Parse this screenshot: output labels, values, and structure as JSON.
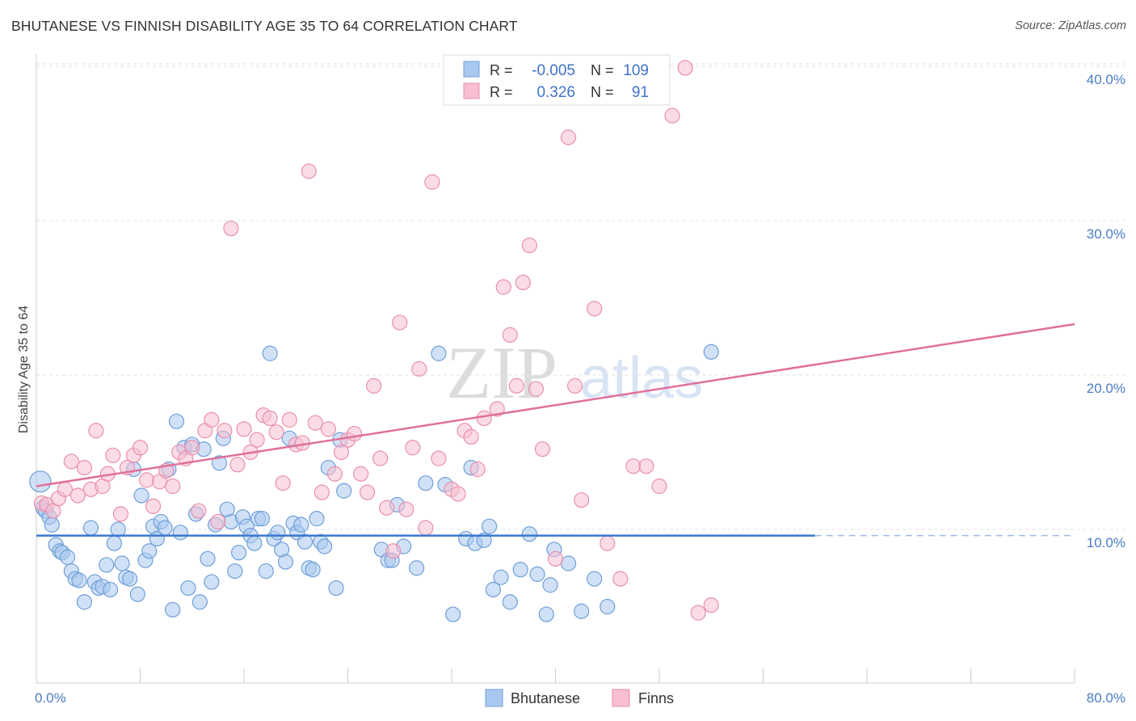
{
  "title": "BHUTANESE VS FINNISH DISABILITY AGE 35 TO 64 CORRELATION CHART",
  "source": "Source: ZipAtlas.com",
  "watermark": {
    "zip": "ZIP",
    "atlas": "atlas"
  },
  "chart_data": {
    "type": "scatter",
    "ylabel": "Disability Age 35 to 64",
    "xlim": [
      0,
      80
    ],
    "ylim": [
      0,
      42
    ],
    "x_tick_labels": [
      "0.0%",
      "80.0%"
    ],
    "y_ticks": [
      10,
      20,
      30,
      40
    ],
    "y_tick_labels": [
      "10.0%",
      "20.0%",
      "30.0%",
      "40.0%"
    ],
    "legend_top": {
      "rows": [
        {
          "r_label": "R =",
          "r_value": "-0.005",
          "n_label": "N =",
          "n_value": "109"
        },
        {
          "r_label": "R =",
          "r_value": "0.326",
          "n_label": "N =",
          "n_value": "91"
        }
      ]
    },
    "colors": {
      "blue_fill": "#a9c8f0",
      "blue_stroke": "#6f9fd8",
      "blue_line": "#3a78d0",
      "pink_fill": "#f7bfd0",
      "pink_stroke": "#e98fae",
      "pink_line": "#e0709a"
    },
    "series": [
      {
        "name": "Bhutanese",
        "trend": {
          "x": [
            0,
            60
          ],
          "y": [
            9.6,
            9.6
          ],
          "dashed_to": 80
        },
        "points": [
          [
            0.3,
            13.1
          ],
          [
            0.5,
            11.4
          ],
          [
            0.7,
            11.2
          ],
          [
            1.0,
            10.8
          ],
          [
            1.2,
            10.3
          ],
          [
            1.5,
            9.0
          ],
          [
            1.8,
            8.6
          ],
          [
            2.0,
            8.5
          ],
          [
            2.4,
            8.2
          ],
          [
            2.7,
            7.3
          ],
          [
            3.0,
            6.8
          ],
          [
            3.3,
            6.7
          ],
          [
            3.7,
            5.3
          ],
          [
            4.2,
            10.1
          ],
          [
            4.5,
            6.6
          ],
          [
            4.8,
            6.2
          ],
          [
            5.1,
            6.3
          ],
          [
            5.4,
            7.7
          ],
          [
            5.7,
            6.1
          ],
          [
            6.0,
            9.1
          ],
          [
            6.3,
            10.0
          ],
          [
            6.6,
            7.8
          ],
          [
            6.9,
            6.9
          ],
          [
            7.2,
            6.8
          ],
          [
            7.5,
            13.9
          ],
          [
            7.8,
            5.8
          ],
          [
            8.1,
            12.2
          ],
          [
            8.4,
            8.0
          ],
          [
            8.7,
            8.6
          ],
          [
            9.0,
            10.2
          ],
          [
            9.3,
            9.4
          ],
          [
            9.6,
            10.5
          ],
          [
            9.9,
            10.1
          ],
          [
            10.2,
            13.9
          ],
          [
            10.5,
            4.8
          ],
          [
            10.8,
            17.0
          ],
          [
            11.1,
            9.8
          ],
          [
            11.4,
            15.3
          ],
          [
            11.7,
            6.2
          ],
          [
            12.0,
            15.5
          ],
          [
            12.3,
            11.0
          ],
          [
            12.6,
            5.3
          ],
          [
            12.9,
            15.2
          ],
          [
            13.2,
            8.1
          ],
          [
            13.5,
            6.6
          ],
          [
            13.8,
            10.3
          ],
          [
            14.1,
            14.3
          ],
          [
            14.4,
            15.9
          ],
          [
            14.7,
            11.3
          ],
          [
            15.0,
            10.5
          ],
          [
            15.3,
            7.3
          ],
          [
            15.6,
            8.5
          ],
          [
            15.9,
            10.8
          ],
          [
            16.2,
            10.2
          ],
          [
            16.5,
            9.6
          ],
          [
            16.8,
            9.1
          ],
          [
            17.1,
            10.7
          ],
          [
            17.4,
            10.7
          ],
          [
            17.7,
            7.3
          ],
          [
            18.0,
            21.4
          ],
          [
            18.3,
            9.4
          ],
          [
            18.6,
            9.8
          ],
          [
            18.9,
            8.7
          ],
          [
            19.2,
            7.9
          ],
          [
            19.5,
            15.9
          ],
          [
            19.8,
            10.4
          ],
          [
            20.1,
            9.8
          ],
          [
            20.4,
            10.3
          ],
          [
            20.7,
            9.2
          ],
          [
            21.0,
            7.5
          ],
          [
            21.3,
            7.4
          ],
          [
            21.6,
            10.7
          ],
          [
            21.9,
            9.2
          ],
          [
            22.2,
            8.9
          ],
          [
            22.5,
            14.0
          ],
          [
            23.1,
            6.2
          ],
          [
            23.4,
            15.8
          ],
          [
            23.7,
            12.5
          ],
          [
            26.6,
            8.7
          ],
          [
            27.1,
            8.0
          ],
          [
            27.4,
            8.0
          ],
          [
            27.8,
            11.6
          ],
          [
            28.3,
            8.9
          ],
          [
            29.3,
            7.5
          ],
          [
            30.0,
            13.0
          ],
          [
            31.0,
            21.4
          ],
          [
            31.5,
            12.9
          ],
          [
            32.1,
            4.5
          ],
          [
            33.1,
            9.4
          ],
          [
            33.5,
            14.0
          ],
          [
            33.8,
            9.1
          ],
          [
            34.5,
            9.3
          ],
          [
            34.9,
            10.2
          ],
          [
            35.2,
            6.1
          ],
          [
            35.8,
            6.9
          ],
          [
            36.5,
            5.3
          ],
          [
            37.3,
            7.4
          ],
          [
            38.0,
            9.7
          ],
          [
            38.6,
            7.1
          ],
          [
            39.3,
            4.5
          ],
          [
            39.6,
            6.4
          ],
          [
            39.9,
            8.7
          ],
          [
            41.0,
            7.8
          ],
          [
            42.0,
            4.7
          ],
          [
            43.0,
            6.8
          ],
          [
            44.0,
            5.0
          ],
          [
            52.0,
            21.5
          ]
        ]
      },
      {
        "name": "Finns",
        "trend": {
          "x": [
            0,
            80
          ],
          "y": [
            12.8,
            23.3
          ]
        },
        "points": [
          [
            0.4,
            11.7
          ],
          [
            0.8,
            11.6
          ],
          [
            1.3,
            11.2
          ],
          [
            1.7,
            12.0
          ],
          [
            2.2,
            12.6
          ],
          [
            2.7,
            14.4
          ],
          [
            3.2,
            12.2
          ],
          [
            3.7,
            14.0
          ],
          [
            4.2,
            12.6
          ],
          [
            4.6,
            16.4
          ],
          [
            5.1,
            12.8
          ],
          [
            5.5,
            13.6
          ],
          [
            5.9,
            14.8
          ],
          [
            6.5,
            11.0
          ],
          [
            7.0,
            14.0
          ],
          [
            7.5,
            14.8
          ],
          [
            8.0,
            15.3
          ],
          [
            8.5,
            13.2
          ],
          [
            9.0,
            11.5
          ],
          [
            9.5,
            13.1
          ],
          [
            10.0,
            13.8
          ],
          [
            10.5,
            12.8
          ],
          [
            11.0,
            15.0
          ],
          [
            11.5,
            14.6
          ],
          [
            12.0,
            15.3
          ],
          [
            12.5,
            11.2
          ],
          [
            13.0,
            16.4
          ],
          [
            13.5,
            17.1
          ],
          [
            14.0,
            10.5
          ],
          [
            14.5,
            16.4
          ],
          [
            15.0,
            29.5
          ],
          [
            15.5,
            14.2
          ],
          [
            16.0,
            16.5
          ],
          [
            16.5,
            15.0
          ],
          [
            17.0,
            15.8
          ],
          [
            17.5,
            17.4
          ],
          [
            18.0,
            17.2
          ],
          [
            18.5,
            16.3
          ],
          [
            19.0,
            13.0
          ],
          [
            19.5,
            17.1
          ],
          [
            20.0,
            15.5
          ],
          [
            20.5,
            15.6
          ],
          [
            21.0,
            33.2
          ],
          [
            21.5,
            16.9
          ],
          [
            22.0,
            12.4
          ],
          [
            22.5,
            16.5
          ],
          [
            23.0,
            13.6
          ],
          [
            23.5,
            15.0
          ],
          [
            24.0,
            15.8
          ],
          [
            24.5,
            16.2
          ],
          [
            25.0,
            13.6
          ],
          [
            25.5,
            12.4
          ],
          [
            26.0,
            19.3
          ],
          [
            26.5,
            14.6
          ],
          [
            27.0,
            11.4
          ],
          [
            27.5,
            8.6
          ],
          [
            28.0,
            23.4
          ],
          [
            28.5,
            11.3
          ],
          [
            29.0,
            15.3
          ],
          [
            29.5,
            20.4
          ],
          [
            30.0,
            10.1
          ],
          [
            30.5,
            32.5
          ],
          [
            31.0,
            14.6
          ],
          [
            32.0,
            12.6
          ],
          [
            32.5,
            12.3
          ],
          [
            33.0,
            16.4
          ],
          [
            33.5,
            16.0
          ],
          [
            34.0,
            13.9
          ],
          [
            34.5,
            17.2
          ],
          [
            35.5,
            17.8
          ],
          [
            36.0,
            25.7
          ],
          [
            36.5,
            22.6
          ],
          [
            37.0,
            19.3
          ],
          [
            37.5,
            26.0
          ],
          [
            38.0,
            28.4
          ],
          [
            38.5,
            19.1
          ],
          [
            39.0,
            15.2
          ],
          [
            40.0,
            8.1
          ],
          [
            41.0,
            35.4
          ],
          [
            41.5,
            19.3
          ],
          [
            42.0,
            11.9
          ],
          [
            43.0,
            24.3
          ],
          [
            44.0,
            9.1
          ],
          [
            45.0,
            6.8
          ],
          [
            46.0,
            14.1
          ],
          [
            47.0,
            14.1
          ],
          [
            48.0,
            12.8
          ],
          [
            49.0,
            36.8
          ],
          [
            50.0,
            39.9
          ],
          [
            51.0,
            4.6
          ],
          [
            52.0,
            5.1
          ]
        ]
      }
    ]
  }
}
